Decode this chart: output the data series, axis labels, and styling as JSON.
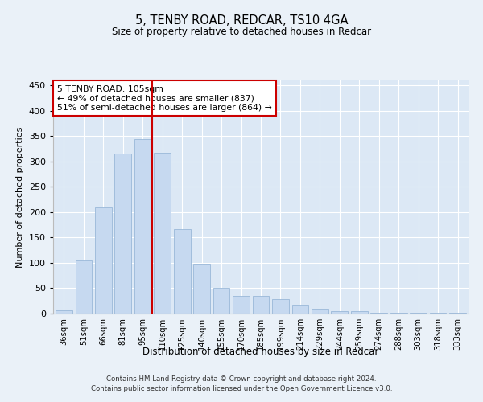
{
  "title1": "5, TENBY ROAD, REDCAR, TS10 4GA",
  "title2": "Size of property relative to detached houses in Redcar",
  "xlabel": "Distribution of detached houses by size in Redcar",
  "ylabel": "Number of detached properties",
  "categories": [
    "36sqm",
    "51sqm",
    "66sqm",
    "81sqm",
    "95sqm",
    "110sqm",
    "125sqm",
    "140sqm",
    "155sqm",
    "170sqm",
    "185sqm",
    "199sqm",
    "214sqm",
    "229sqm",
    "244sqm",
    "259sqm",
    "274sqm",
    "288sqm",
    "303sqm",
    "318sqm",
    "333sqm"
  ],
  "values": [
    7,
    105,
    209,
    315,
    344,
    318,
    166,
    98,
    51,
    35,
    35,
    29,
    17,
    9,
    5,
    5,
    2,
    1,
    1,
    1,
    1
  ],
  "bar_color": "#c6d9f0",
  "bar_edge_color": "#9ab8d8",
  "vline_x": 4.5,
  "vline_color": "#cc0000",
  "annotation_line1": "5 TENBY ROAD: 105sqm",
  "annotation_line2": "← 49% of detached houses are smaller (837)",
  "annotation_line3": "51% of semi-detached houses are larger (864) →",
  "annotation_box_color": "#cc0000",
  "ylim": [
    0,
    460
  ],
  "yticks": [
    0,
    50,
    100,
    150,
    200,
    250,
    300,
    350,
    400,
    450
  ],
  "background_color": "#eaf1f8",
  "plot_bg_color": "#dce8f5",
  "footer1": "Contains HM Land Registry data © Crown copyright and database right 2024.",
  "footer2": "Contains public sector information licensed under the Open Government Licence v3.0."
}
